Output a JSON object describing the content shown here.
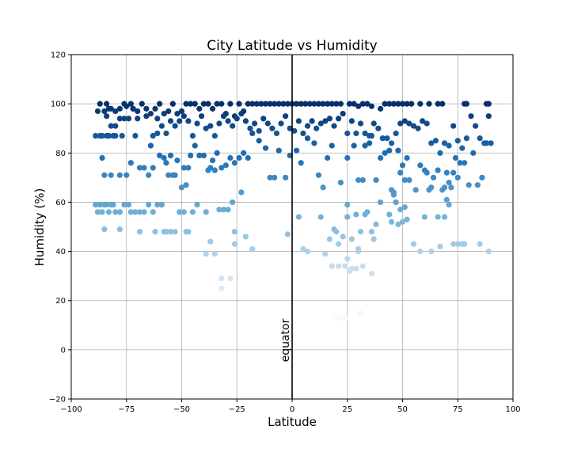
{
  "chart_data": {
    "type": "scatter",
    "title": "City Latitude vs Humidity",
    "xlabel": "Latitude",
    "ylabel": "Humidity (%)",
    "xlim": [
      -100,
      100
    ],
    "ylim": [
      -20,
      120
    ],
    "xticks": [
      -100,
      -75,
      -50,
      -25,
      0,
      25,
      50,
      75,
      100
    ],
    "yticks": [
      -20,
      0,
      20,
      40,
      60,
      80,
      100,
      120
    ],
    "xtick_labels": [
      "−100",
      "−75",
      "−50",
      "−25",
      "0",
      "25",
      "50",
      "75",
      "100"
    ],
    "ytick_labels": [
      "−20",
      "0",
      "20",
      "40",
      "60",
      "80",
      "100",
      "120"
    ],
    "grid": true,
    "colormap": "Blues",
    "color_by": "y",
    "annotation": {
      "text": "equator",
      "x": 0,
      "y": -5,
      "rotation": 90
    },
    "vline": {
      "x": 0,
      "color": "#000000"
    },
    "points": [
      [
        -88,
        97
      ],
      [
        -87,
        100
      ],
      [
        -85,
        97
      ],
      [
        -84,
        100
      ],
      [
        -83,
        98
      ],
      [
        -82,
        98
      ],
      [
        -80,
        97
      ],
      [
        -78,
        98
      ],
      [
        -76,
        100
      ],
      [
        -75,
        99
      ],
      [
        -73,
        100
      ],
      [
        -72,
        98
      ],
      [
        -70,
        97
      ],
      [
        -68,
        100
      ],
      [
        -66,
        98
      ],
      [
        -64,
        96
      ],
      [
        -62,
        98
      ],
      [
        -60,
        100
      ],
      [
        -58,
        96
      ],
      [
        -56,
        97
      ],
      [
        -54,
        100
      ],
      [
        -52,
        96
      ],
      [
        -50,
        97
      ],
      [
        -48,
        100
      ],
      [
        -46,
        100
      ],
      [
        -44,
        100
      ],
      [
        -42,
        98
      ],
      [
        -40,
        100
      ],
      [
        -38,
        100
      ],
      [
        -36,
        98
      ],
      [
        -34,
        100
      ],
      [
        -32,
        100
      ],
      [
        -30,
        96
      ],
      [
        -28,
        100
      ],
      [
        -26,
        95
      ],
      [
        -24,
        100
      ],
      [
        -22,
        97
      ],
      [
        -20,
        100
      ],
      [
        -18,
        100
      ],
      [
        -16,
        100
      ],
      [
        -14,
        100
      ],
      [
        -12,
        100
      ],
      [
        -10,
        100
      ],
      [
        -8,
        100
      ],
      [
        -6,
        100
      ],
      [
        -4,
        100
      ],
      [
        -2,
        100
      ],
      [
        0,
        100
      ],
      [
        2,
        100
      ],
      [
        4,
        100
      ],
      [
        6,
        100
      ],
      [
        8,
        100
      ],
      [
        10,
        100
      ],
      [
        12,
        100
      ],
      [
        14,
        100
      ],
      [
        16,
        100
      ],
      [
        18,
        100
      ],
      [
        20,
        100
      ],
      [
        22,
        100
      ],
      [
        26,
        100
      ],
      [
        28,
        100
      ],
      [
        30,
        99
      ],
      [
        32,
        100
      ],
      [
        34,
        100
      ],
      [
        36,
        99
      ],
      [
        40,
        98
      ],
      [
        42,
        100
      ],
      [
        44,
        100
      ],
      [
        46,
        100
      ],
      [
        48,
        100
      ],
      [
        50,
        100
      ],
      [
        52,
        100
      ],
      [
        54,
        100
      ],
      [
        58,
        100
      ],
      [
        62,
        100
      ],
      [
        66,
        100
      ],
      [
        68,
        100
      ],
      [
        78,
        100
      ],
      [
        79,
        100
      ],
      [
        88,
        100
      ],
      [
        89,
        100
      ],
      [
        -86,
        87
      ],
      [
        -84,
        95
      ],
      [
        -82,
        91
      ],
      [
        -80,
        91
      ],
      [
        -78,
        94
      ],
      [
        -76,
        94
      ],
      [
        -74,
        94
      ],
      [
        -72,
        98
      ],
      [
        -70,
        94
      ],
      [
        -66,
        95
      ],
      [
        -64,
        83
      ],
      [
        -63,
        87
      ],
      [
        -61,
        94
      ],
      [
        -59,
        91
      ],
      [
        -57,
        88
      ],
      [
        -55,
        93
      ],
      [
        -53,
        91
      ],
      [
        -51,
        93
      ],
      [
        -49,
        95
      ],
      [
        -47,
        93
      ],
      [
        -45,
        87
      ],
      [
        -43,
        92
      ],
      [
        -41,
        95
      ],
      [
        -39,
        90
      ],
      [
        -37,
        91
      ],
      [
        -35,
        87
      ],
      [
        -33,
        92
      ],
      [
        -31,
        95
      ],
      [
        -29,
        93
      ],
      [
        -27,
        91
      ],
      [
        -25,
        94
      ],
      [
        -23,
        96
      ],
      [
        -21,
        93
      ],
      [
        -19,
        90
      ],
      [
        -17,
        92
      ],
      [
        -15,
        89
      ],
      [
        -13,
        94
      ],
      [
        -11,
        92
      ],
      [
        -9,
        90
      ],
      [
        -7,
        88
      ],
      [
        -5,
        92
      ],
      [
        -3,
        95
      ],
      [
        -1,
        90
      ],
      [
        1,
        89
      ],
      [
        3,
        93
      ],
      [
        5,
        88
      ],
      [
        7,
        91
      ],
      [
        9,
        93
      ],
      [
        11,
        90
      ],
      [
        13,
        92
      ],
      [
        15,
        93
      ],
      [
        17,
        94
      ],
      [
        19,
        91
      ],
      [
        21,
        94
      ],
      [
        23,
        96
      ],
      [
        25,
        88
      ],
      [
        27,
        93
      ],
      [
        29,
        88
      ],
      [
        31,
        92
      ],
      [
        33,
        88
      ],
      [
        35,
        87
      ],
      [
        37,
        92
      ],
      [
        39,
        90
      ],
      [
        41,
        86
      ],
      [
        43,
        86
      ],
      [
        45,
        84
      ],
      [
        47,
        88
      ],
      [
        49,
        92
      ],
      [
        51,
        93
      ],
      [
        53,
        92
      ],
      [
        55,
        91
      ],
      [
        57,
        90
      ],
      [
        59,
        93
      ],
      [
        61,
        92
      ],
      [
        63,
        84
      ],
      [
        65,
        85
      ],
      [
        67,
        80
      ],
      [
        69,
        84
      ],
      [
        71,
        83
      ],
      [
        73,
        91
      ],
      [
        75,
        85
      ],
      [
        77,
        82
      ],
      [
        79,
        86
      ],
      [
        81,
        95
      ],
      [
        83,
        91
      ],
      [
        85,
        86
      ],
      [
        87,
        84
      ],
      [
        89,
        95
      ],
      [
        90,
        84
      ],
      [
        -89,
        87
      ],
      [
        -87,
        87
      ],
      [
        -86,
        78
      ],
      [
        -85,
        71
      ],
      [
        -84,
        87
      ],
      [
        -83,
        87
      ],
      [
        -82,
        71
      ],
      [
        -81,
        87
      ],
      [
        -80,
        87
      ],
      [
        -78,
        71
      ],
      [
        -77,
        87
      ],
      [
        -75,
        71
      ],
      [
        -73,
        76
      ],
      [
        -71,
        87
      ],
      [
        -69,
        74
      ],
      [
        -67,
        74
      ],
      [
        -65,
        71
      ],
      [
        -63,
        74
      ],
      [
        -61,
        88
      ],
      [
        -60,
        79
      ],
      [
        -58,
        78
      ],
      [
        -57,
        76
      ],
      [
        -56,
        71
      ],
      [
        -55,
        79
      ],
      [
        -54,
        71
      ],
      [
        -53,
        71
      ],
      [
        -52,
        77
      ],
      [
        -50,
        66
      ],
      [
        -49,
        74
      ],
      [
        -48,
        67
      ],
      [
        -47,
        74
      ],
      [
        -46,
        79
      ],
      [
        -44,
        83
      ],
      [
        -42,
        79
      ],
      [
        -40,
        79
      ],
      [
        -38,
        73
      ],
      [
        -37,
        74
      ],
      [
        -36,
        77
      ],
      [
        -35,
        73
      ],
      [
        -34,
        80
      ],
      [
        -32,
        74
      ],
      [
        -30,
        75
      ],
      [
        -28,
        78
      ],
      [
        -26,
        76
      ],
      [
        -24,
        78
      ],
      [
        -22,
        80
      ],
      [
        -20,
        78
      ],
      [
        -18,
        88
      ],
      [
        -15,
        85
      ],
      [
        -12,
        82
      ],
      [
        -10,
        70
      ],
      [
        -8,
        70
      ],
      [
        -6,
        81
      ],
      [
        -3,
        70
      ],
      [
        -1,
        79
      ],
      [
        2,
        81
      ],
      [
        4,
        76
      ],
      [
        7,
        86
      ],
      [
        10,
        84
      ],
      [
        12,
        71
      ],
      [
        14,
        66
      ],
      [
        16,
        78
      ],
      [
        18,
        83
      ],
      [
        22,
        68
      ],
      [
        25,
        78
      ],
      [
        28,
        83
      ],
      [
        30,
        69
      ],
      [
        32,
        69
      ],
      [
        33,
        83
      ],
      [
        35,
        84
      ],
      [
        36,
        87
      ],
      [
        38,
        69
      ],
      [
        40,
        78
      ],
      [
        42,
        80
      ],
      [
        44,
        81
      ],
      [
        45,
        65
      ],
      [
        46,
        63
      ],
      [
        47,
        60
      ],
      [
        48,
        81
      ],
      [
        49,
        72
      ],
      [
        50,
        75
      ],
      [
        51,
        69
      ],
      [
        52,
        78
      ],
      [
        53,
        69
      ],
      [
        56,
        65
      ],
      [
        58,
        75
      ],
      [
        60,
        73
      ],
      [
        61,
        72
      ],
      [
        62,
        65
      ],
      [
        63,
        66
      ],
      [
        64,
        70
      ],
      [
        66,
        73
      ],
      [
        68,
        65
      ],
      [
        69,
        66
      ],
      [
        70,
        72
      ],
      [
        71,
        68
      ],
      [
        72,
        66
      ],
      [
        73,
        72
      ],
      [
        74,
        78
      ],
      [
        75,
        70
      ],
      [
        76,
        76
      ],
      [
        78,
        76
      ],
      [
        80,
        67
      ],
      [
        82,
        80
      ],
      [
        84,
        67
      ],
      [
        86,
        70
      ],
      [
        88,
        84
      ],
      [
        -89,
        59
      ],
      [
        -88,
        56
      ],
      [
        -87,
        59
      ],
      [
        -86,
        56
      ],
      [
        -85,
        59
      ],
      [
        -84,
        59
      ],
      [
        -83,
        56
      ],
      [
        -82,
        59
      ],
      [
        -81,
        59
      ],
      [
        -80,
        56
      ],
      [
        -78,
        56
      ],
      [
        -76,
        59
      ],
      [
        -74,
        59
      ],
      [
        -73,
        56
      ],
      [
        -71,
        56
      ],
      [
        -69,
        56
      ],
      [
        -67,
        56
      ],
      [
        -65,
        59
      ],
      [
        -63,
        56
      ],
      [
        -61,
        59
      ],
      [
        -59,
        59
      ],
      [
        -57,
        48
      ],
      [
        -55,
        48
      ],
      [
        -53,
        48
      ],
      [
        -51,
        56
      ],
      [
        -49,
        56
      ],
      [
        -47,
        48
      ],
      [
        -45,
        56
      ],
      [
        -43,
        59
      ],
      [
        -39,
        56
      ],
      [
        -37,
        44
      ],
      [
        -35,
        39
      ],
      [
        -33,
        57
      ],
      [
        -31,
        57
      ],
      [
        -29,
        57
      ],
      [
        -27,
        60
      ],
      [
        -23,
        64
      ],
      [
        -21,
        46
      ],
      [
        -18,
        41
      ],
      [
        -26,
        43
      ],
      [
        -26,
        48
      ],
      [
        -2,
        47
      ],
      [
        3,
        54
      ],
      [
        5,
        41
      ],
      [
        7,
        40
      ],
      [
        13,
        54
      ],
      [
        17,
        45
      ],
      [
        19,
        49
      ],
      [
        20,
        48
      ],
      [
        21,
        43
      ],
      [
        23,
        46
      ],
      [
        25,
        54
      ],
      [
        25,
        59
      ],
      [
        27,
        45
      ],
      [
        29,
        55
      ],
      [
        30,
        40
      ],
      [
        31,
        48
      ],
      [
        33,
        55
      ],
      [
        34,
        56
      ],
      [
        36,
        48
      ],
      [
        37,
        45
      ],
      [
        38,
        51
      ],
      [
        40,
        60
      ],
      [
        44,
        55
      ],
      [
        45,
        52
      ],
      [
        46,
        64
      ],
      [
        47,
        60
      ],
      [
        48,
        51
      ],
      [
        49,
        57
      ],
      [
        50,
        52
      ],
      [
        51,
        58
      ],
      [
        52,
        53
      ],
      [
        55,
        43
      ],
      [
        58,
        40
      ],
      [
        60,
        54
      ],
      [
        63,
        40
      ],
      [
        66,
        54
      ],
      [
        67,
        42
      ],
      [
        69,
        54
      ],
      [
        70,
        61
      ],
      [
        71,
        59
      ],
      [
        73,
        43
      ],
      [
        75,
        43
      ],
      [
        77,
        43
      ],
      [
        78,
        43
      ],
      [
        85,
        43
      ],
      [
        89,
        40
      ],
      [
        -85,
        49
      ],
      [
        -78,
        49
      ],
      [
        -69,
        48
      ],
      [
        -62,
        48
      ],
      [
        -58,
        48
      ],
      [
        -48,
        48
      ],
      [
        -39,
        39
      ],
      [
        -32,
        29
      ],
      [
        -32,
        25
      ],
      [
        -28,
        29
      ],
      [
        -18,
        41
      ],
      [
        18,
        34
      ],
      [
        21,
        34
      ],
      [
        24,
        34
      ],
      [
        25,
        37
      ],
      [
        26,
        32
      ],
      [
        27,
        33
      ],
      [
        29,
        33
      ],
      [
        32,
        34
      ],
      [
        36,
        31
      ],
      [
        15,
        39
      ],
      [
        30,
        41
      ],
      [
        20,
        13
      ],
      [
        22,
        13
      ],
      [
        24,
        13
      ],
      [
        31,
        15
      ]
    ]
  }
}
